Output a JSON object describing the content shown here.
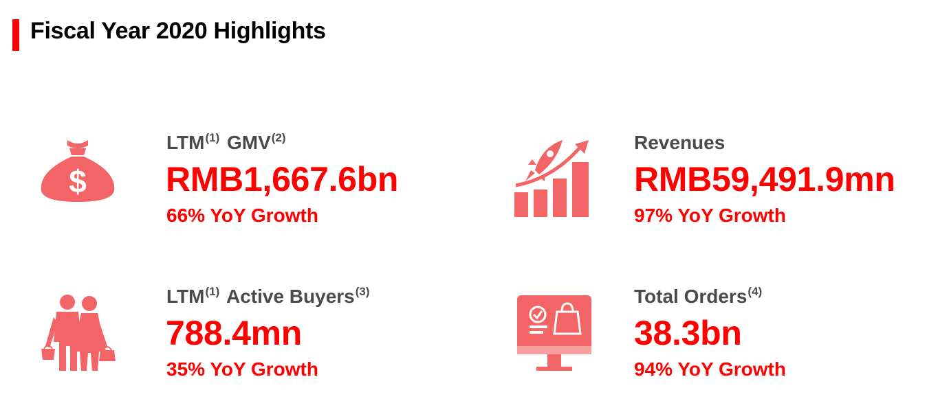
{
  "title": "Fiscal Year 2020 Highlights",
  "accent_color": "#ff0000",
  "icon_color": "#f26465",
  "metrics": [
    {
      "label_parts": [
        "LTM",
        "(1)",
        " GMV",
        "(2)"
      ],
      "value": "RMB1,667.6bn",
      "growth": "66% YoY Growth",
      "icon": "money-bag-icon"
    },
    {
      "label_parts": [
        "Revenues"
      ],
      "value": "RMB59,491.9mn",
      "growth": "97% YoY Growth",
      "icon": "rocket-growth-chart-icon"
    },
    {
      "label_parts": [
        "LTM",
        "(1)",
        " Active Buyers",
        "(3)"
      ],
      "value": "788.4mn",
      "growth": "35% YoY Growth",
      "icon": "shoppers-icon"
    },
    {
      "label_parts": [
        "Total Orders",
        "(4)"
      ],
      "value": "38.3bn",
      "growth": "94% YoY Growth",
      "icon": "online-order-monitor-icon"
    }
  ]
}
